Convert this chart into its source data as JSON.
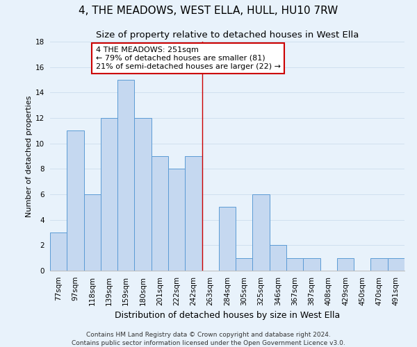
{
  "title": "4, THE MEADOWS, WEST ELLA, HULL, HU10 7RW",
  "subtitle": "Size of property relative to detached houses in West Ella",
  "xlabel": "Distribution of detached houses by size in West Ella",
  "ylabel": "Number of detached properties",
  "bin_labels": [
    "77sqm",
    "97sqm",
    "118sqm",
    "139sqm",
    "159sqm",
    "180sqm",
    "201sqm",
    "222sqm",
    "242sqm",
    "263sqm",
    "284sqm",
    "305sqm",
    "325sqm",
    "346sqm",
    "367sqm",
    "387sqm",
    "408sqm",
    "429sqm",
    "450sqm",
    "470sqm",
    "491sqm"
  ],
  "bar_heights": [
    3,
    11,
    6,
    12,
    15,
    12,
    9,
    8,
    9,
    0,
    5,
    1,
    6,
    2,
    1,
    1,
    0,
    1,
    0,
    1,
    1
  ],
  "bar_color": "#c5d8f0",
  "bar_edge_color": "#5b9bd5",
  "grid_color": "#d0e0ef",
  "background_color": "#e8f2fb",
  "vline_x": 8.5,
  "vline_color": "#cc0000",
  "annotation_text": "4 THE MEADOWS: 251sqm\n← 79% of detached houses are smaller (81)\n21% of semi-detached houses are larger (22) →",
  "annotation_box_edge": "#cc0000",
  "annotation_box_bg": "#ffffff",
  "footer_line1": "Contains HM Land Registry data © Crown copyright and database right 2024.",
  "footer_line2": "Contains public sector information licensed under the Open Government Licence v3.0.",
  "ylim": [
    0,
    18
  ],
  "yticks": [
    0,
    2,
    4,
    6,
    8,
    10,
    12,
    14,
    16,
    18
  ],
  "title_fontsize": 11,
  "subtitle_fontsize": 9.5,
  "xlabel_fontsize": 9,
  "ylabel_fontsize": 8,
  "tick_fontsize": 7.5,
  "footer_fontsize": 6.5,
  "annot_fontsize": 8
}
